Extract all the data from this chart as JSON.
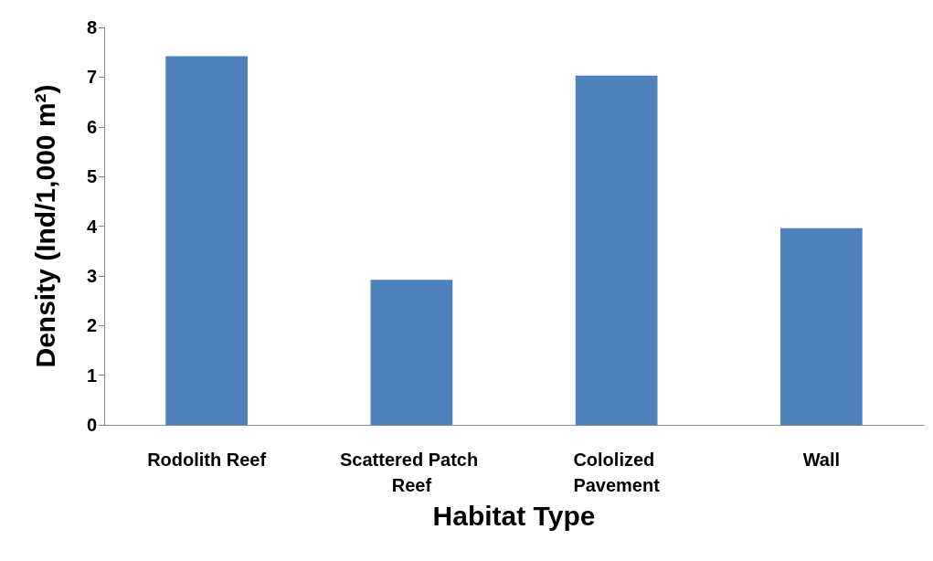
{
  "chart_data": {
    "type": "bar",
    "xlabel": "Habitat Type",
    "ylabel": "Density (Ind/1,000 m²)",
    "categories": [
      "Rodolith Reef",
      "Scattered Patch Reef",
      "Cololized Pavement",
      "Wall"
    ],
    "values": [
      7.42,
      2.92,
      7.03,
      3.96
    ],
    "color": "#4f81bd",
    "ylim": [
      0,
      8
    ],
    "yticks": [
      0,
      1,
      2,
      3,
      4,
      5,
      6,
      7,
      8
    ],
    "grid": false
  }
}
